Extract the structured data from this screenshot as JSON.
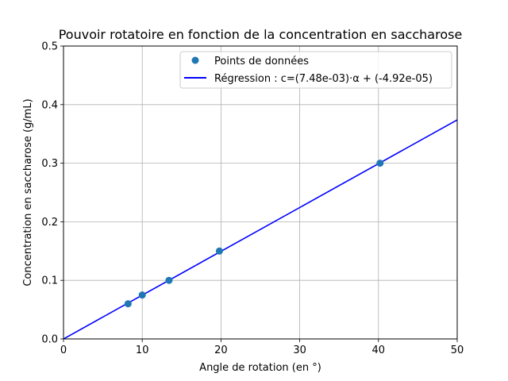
{
  "chart_data": {
    "type": "scatter",
    "title": "Pouvoir rotatoire en fonction de la concentration en saccharose",
    "xlabel": "Angle de rotation (en °)",
    "ylabel": "Concentration en saccharose (g/mL)",
    "xlim": [
      0,
      50
    ],
    "ylim": [
      0,
      0.5
    ],
    "xticks": [
      0,
      10,
      20,
      30,
      40,
      50
    ],
    "xtick_labels": [
      "0",
      "10",
      "20",
      "30",
      "40",
      "50"
    ],
    "yticks": [
      0.0,
      0.1,
      0.2,
      0.3,
      0.4,
      0.5
    ],
    "ytick_labels": [
      "0.0",
      "0.1",
      "0.2",
      "0.3",
      "0.4",
      "0.5"
    ],
    "grid": true,
    "legend_position": "top-right",
    "series": [
      {
        "name": "Points de données",
        "kind": "scatter",
        "color": "#1f77b4",
        "x": [
          8.2,
          10.0,
          13.4,
          19.8,
          40.2
        ],
        "y": [
          0.06,
          0.075,
          0.1,
          0.15,
          0.3
        ]
      },
      {
        "name": "Régression : c=(7.48e-03)·α + (-4.92e-05)",
        "kind": "line",
        "color": "#0000ff",
        "slope": 0.00748,
        "intercept": -4.92e-05
      }
    ]
  }
}
